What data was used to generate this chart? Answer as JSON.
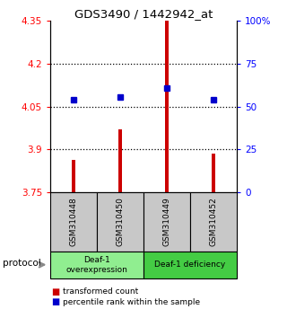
{
  "title": "GDS3490 / 1442942_at",
  "samples": [
    "GSM310448",
    "GSM310450",
    "GSM310449",
    "GSM310452"
  ],
  "red_values": [
    3.865,
    3.97,
    4.35,
    3.885
  ],
  "blue_values": [
    4.075,
    4.082,
    4.115,
    4.075
  ],
  "ylim": [
    3.75,
    4.35
  ],
  "yticks_left": [
    3.75,
    3.9,
    4.05,
    4.2,
    4.35
  ],
  "yticks_right": [
    0,
    25,
    50,
    75,
    100
  ],
  "yticks_right_labels": [
    "0",
    "25",
    "50",
    "75",
    "100%"
  ],
  "bar_bottom": 3.75,
  "bar_color": "#cc0000",
  "dot_color": "#0000cc",
  "group1_color": "#90ee90",
  "group2_color": "#44cc44",
  "sample_box_color": "#c8c8c8",
  "group1_label": "Deaf-1\noverexpression",
  "group2_label": "Deaf-1 deficiency",
  "legend_red_label": "transformed count",
  "legend_blue_label": "percentile rank within the sample",
  "protocol_label": "protocol"
}
